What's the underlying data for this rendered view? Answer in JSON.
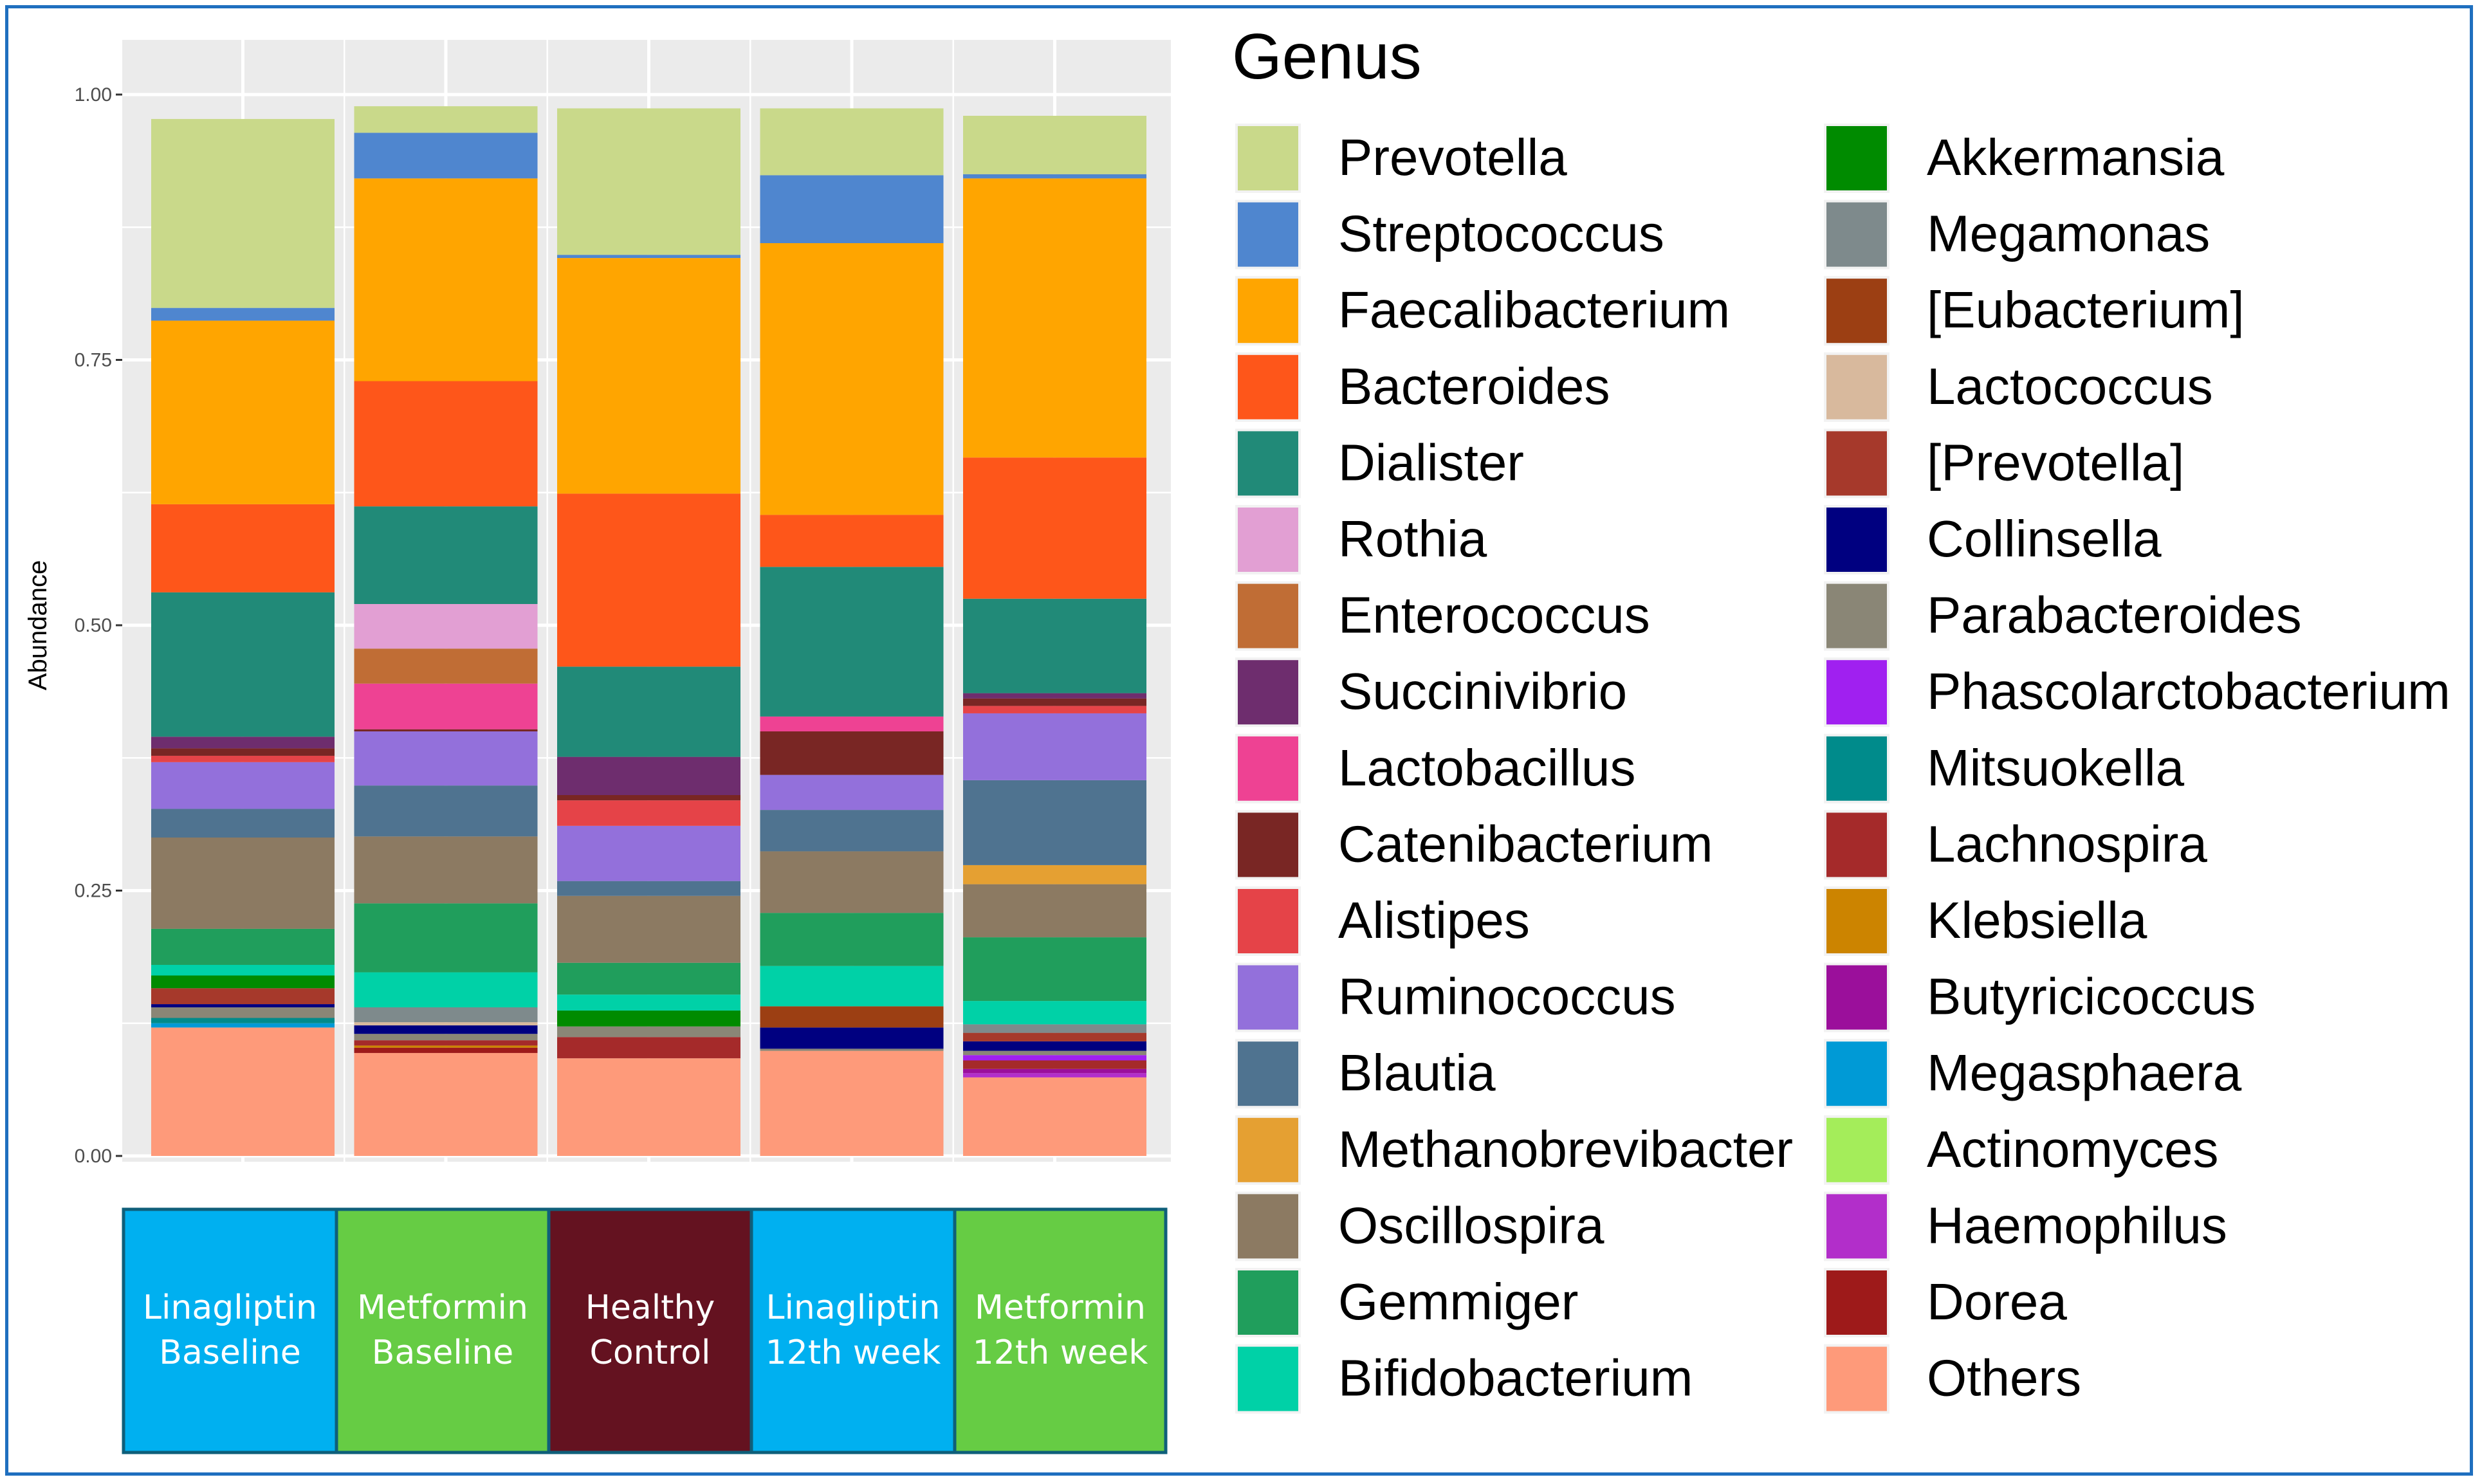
{
  "chart_data": {
    "type": "bar",
    "stacked": true,
    "ylabel": "Abundance",
    "xlabel": "",
    "ylim": [
      0,
      1
    ],
    "yticks": [
      "0.00",
      "0.25",
      "0.50",
      "0.75",
      "1.00"
    ],
    "grid": true,
    "legend_title": "Genus",
    "legend_position": "right",
    "categories": [
      {
        "line1": "Linagliptin",
        "line2": "Baseline",
        "bg": "#00b0f0",
        "fg": "#ffffff"
      },
      {
        "line1": "Metformin",
        "line2": "Baseline",
        "bg": "#66cc44",
        "fg": "#ffffff"
      },
      {
        "line1": "Healthy",
        "line2": "Control",
        "bg": "#641220",
        "fg": "#ffffff"
      },
      {
        "line1": "Linagliptin",
        "line2": "12th week",
        "bg": "#00b0f0",
        "fg": "#ffffff"
      },
      {
        "line1": "Metformin",
        "line2": "12th week",
        "bg": "#66cc44",
        "fg": "#ffffff"
      }
    ],
    "series": [
      {
        "name": "Prevotella",
        "color": "#c9d98a",
        "values": [
          0.178,
          0.025,
          0.138,
          0.063,
          0.055
        ]
      },
      {
        "name": "Streptococcus",
        "color": "#4f86cf",
        "values": [
          0.012,
          0.043,
          0.003,
          0.064,
          0.004
        ]
      },
      {
        "name": "Faecalibacterium",
        "color": "#ffa500",
        "values": [
          0.173,
          0.191,
          0.222,
          0.256,
          0.263
        ]
      },
      {
        "name": "Bacteroides",
        "color": "#fe561a",
        "values": [
          0.083,
          0.118,
          0.163,
          0.049,
          0.133
        ]
      },
      {
        "name": "Dialister",
        "color": "#218a78",
        "values": [
          0.136,
          0.092,
          0.085,
          0.141,
          0.089
        ]
      },
      {
        "name": "Rothia",
        "color": "#e29fd3",
        "values": [
          0.0,
          0.042,
          0.0,
          0.0,
          0.0
        ]
      },
      {
        "name": "Enterococcus",
        "color": "#c06d35",
        "values": [
          0.0,
          0.033,
          0.0,
          0.0,
          0.0
        ]
      },
      {
        "name": "Succinivibrio",
        "color": "#6e2d6e",
        "values": [
          0.011,
          0.0,
          0.036,
          0.0,
          0.005
        ]
      },
      {
        "name": "Lactobacillus",
        "color": "#ee4293",
        "values": [
          0.0,
          0.043,
          0.0,
          0.014,
          0.0
        ]
      },
      {
        "name": "Catenibacterium",
        "color": "#792624",
        "values": [
          0.007,
          0.002,
          0.005,
          0.041,
          0.007
        ]
      },
      {
        "name": "Alistipes",
        "color": "#e54348",
        "values": [
          0.006,
          0.0,
          0.024,
          0.0,
          0.007
        ]
      },
      {
        "name": "Ruminococcus",
        "color": "#9370db",
        "values": [
          0.044,
          0.051,
          0.052,
          0.033,
          0.063
        ]
      },
      {
        "name": "Blautia",
        "color": "#4f7390",
        "values": [
          0.027,
          0.048,
          0.014,
          0.039,
          0.08
        ]
      },
      {
        "name": "Methanobrevibacter",
        "color": "#e5a032",
        "values": [
          0.0,
          0.0,
          0.0,
          0.0,
          0.018
        ]
      },
      {
        "name": "Oscillospira",
        "color": "#8c7a62",
        "values": [
          0.086,
          0.063,
          0.063,
          0.058,
          0.05
        ]
      },
      {
        "name": "Gemmiger",
        "color": "#209e5c",
        "values": [
          0.034,
          0.065,
          0.03,
          0.05,
          0.06
        ]
      },
      {
        "name": "Bifidobacterium",
        "color": "#00d1a7",
        "values": [
          0.01,
          0.033,
          0.015,
          0.038,
          0.022
        ]
      },
      {
        "name": "Akkermansia",
        "color": "#008b00",
        "values": [
          0.012,
          0.0,
          0.015,
          0.0,
          0.0
        ]
      },
      {
        "name": "Megamonas",
        "color": "#7e8a8c",
        "values": [
          0.0,
          0.014,
          0.0,
          0.0,
          0.008
        ]
      },
      {
        "name": "[Eubacterium]",
        "color": "#9c3f13",
        "values": [
          0.0,
          0.0,
          0.0,
          0.02,
          0.0
        ]
      },
      {
        "name": "Lactococcus",
        "color": "#d8b99d",
        "values": [
          0.0,
          0.003,
          0.0,
          0.0,
          0.0
        ]
      },
      {
        "name": "[Prevotella]",
        "color": "#a6392b",
        "values": [
          0.015,
          0.0,
          0.0,
          0.0,
          0.008
        ]
      },
      {
        "name": "Collinsella",
        "color": "#000080",
        "values": [
          0.003,
          0.008,
          0.0,
          0.02,
          0.009
        ]
      },
      {
        "name": "Parabacteroides",
        "color": "#8a8676",
        "values": [
          0.01,
          0.006,
          0.01,
          0.002,
          0.004
        ]
      },
      {
        "name": "Phascolarctobacterium",
        "color": "#a020f0",
        "values": [
          0.0,
          0.0,
          0.0,
          0.0,
          0.005
        ]
      },
      {
        "name": "Mitsuokella",
        "color": "#008b8b",
        "values": [
          0.005,
          0.0,
          0.0,
          0.0,
          0.0
        ]
      },
      {
        "name": "Lachnospira",
        "color": "#a52a2a",
        "values": [
          0.0,
          0.005,
          0.02,
          0.0,
          0.008
        ]
      },
      {
        "name": "Klebsiella",
        "color": "#cc8400",
        "values": [
          0.0,
          0.002,
          0.0,
          0.0,
          0.0
        ]
      },
      {
        "name": "Butyricicoccus",
        "color": "#9b0f9b",
        "values": [
          0.0,
          0.0,
          0.0,
          0.0,
          0.004
        ]
      },
      {
        "name": "Megasphaera",
        "color": "#009ad6",
        "values": [
          0.004,
          0.0,
          0.0,
          0.0,
          0.0
        ]
      },
      {
        "name": "Actinomyces",
        "color": "#a4ed5a",
        "values": [
          0.0,
          0.0,
          0.0,
          0.0,
          0.0
        ]
      },
      {
        "name": "Haemophilus",
        "color": "#b22eca",
        "values": [
          0.0,
          0.0,
          0.0,
          0.0,
          0.004
        ]
      },
      {
        "name": "Dorea",
        "color": "#9e1a1a",
        "values": [
          0.0,
          0.005,
          0.0,
          0.0,
          0.0
        ]
      },
      {
        "name": "Others",
        "color": "#fe9a7a",
        "values": [
          0.121,
          0.097,
          0.092,
          0.099,
          0.074
        ]
      }
    ]
  }
}
